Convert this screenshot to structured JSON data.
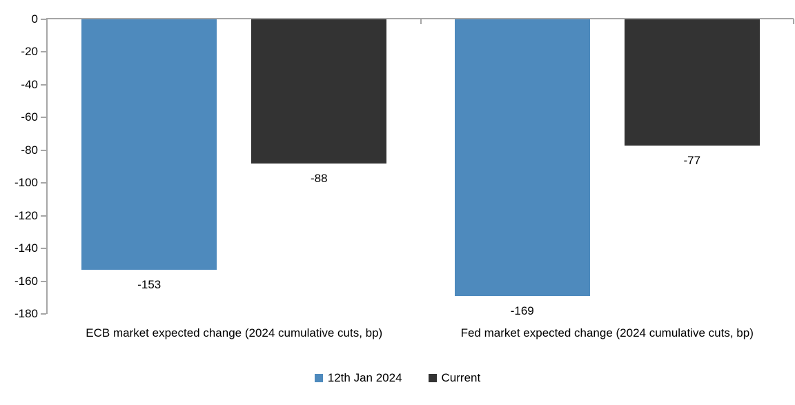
{
  "chart_data": {
    "type": "bar",
    "categories": [
      "ECB market expected change (2024 cumulative cuts, bp)",
      "Fed market expected change (2024 cumulative cuts, bp)"
    ],
    "series": [
      {
        "name": "12th Jan 2024",
        "color": "#4E8ABD",
        "values": [
          -153,
          -169
        ]
      },
      {
        "name": "Current",
        "color": "#333333",
        "values": [
          -88,
          -77
        ]
      }
    ],
    "data_labels": {
      "ECB": [
        "-153",
        "-88"
      ],
      "Fed": [
        "-169",
        "-77"
      ]
    },
    "ylim": [
      -180,
      0
    ],
    "yticks": [
      "0",
      "-20",
      "-40",
      "-60",
      "-80",
      "-100",
      "-120",
      "-140",
      "-160",
      "-180"
    ],
    "ytick_values": [
      0,
      -20,
      -40,
      -60,
      -80,
      -100,
      -120,
      -140,
      -160,
      -180
    ],
    "grid": false,
    "legend_position": "bottom",
    "axis_color": "#A6A6A6",
    "title": "",
    "xlabel": "",
    "ylabel": ""
  }
}
